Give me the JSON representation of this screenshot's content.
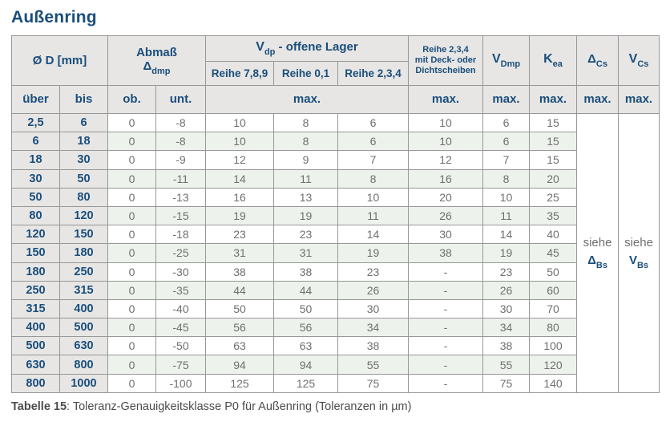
{
  "page": {
    "title": "Außenring",
    "caption_label": "Tabelle 15",
    "caption_text": ": Toleranz-Genauigkeitsklasse P0 für Außenring (Toleranzen in µm)"
  },
  "colors": {
    "accent": "#1a4e7c",
    "bodytext": "#6f6f6f",
    "headerbg": "#e7e6e4",
    "altrow": "#edf3ec",
    "border": "#979797",
    "caption": "#4c4c4c",
    "pagebg": "#ffffff"
  },
  "table": {
    "header": {
      "diameter": "Ø D  [mm]",
      "abmass_line1": "Abmaß",
      "abmass_symbol": "Δ",
      "abmass_sub": "dmp",
      "vdp_symbol": "V",
      "vdp_sub": "dp",
      "vdp_rest": "  -  offene Lager",
      "vdp_cols": [
        "Reihe 7,8,9",
        "Reihe 0,1",
        "Reihe 2,3,4"
      ],
      "sealed": [
        "Reihe 2,3,4",
        "mit Deck- oder",
        "Dichtscheiben"
      ],
      "vdmp_symbol": "V",
      "vdmp_sub": "Dmp",
      "kea_symbol": "K",
      "kea_sub": "ea",
      "dcs_symbol": "Δ",
      "dcs_sub": "Cs",
      "vcs_symbol": "V",
      "vcs_sub": "Cs",
      "ueber": "über",
      "bis": "bis",
      "ob": "ob.",
      "unt": "unt.",
      "max": "max."
    },
    "rows": [
      [
        "2,5",
        "6",
        "0",
        "-8",
        "10",
        "8",
        "6",
        "10",
        "6",
        "15"
      ],
      [
        "6",
        "18",
        "0",
        "-8",
        "10",
        "8",
        "6",
        "10",
        "6",
        "15"
      ],
      [
        "18",
        "30",
        "0",
        "-9",
        "12",
        "9",
        "7",
        "12",
        "7",
        "15"
      ],
      [
        "30",
        "50",
        "0",
        "-11",
        "14",
        "11",
        "8",
        "16",
        "8",
        "20"
      ],
      [
        "50",
        "80",
        "0",
        "-13",
        "16",
        "13",
        "10",
        "20",
        "10",
        "25"
      ],
      [
        "80",
        "120",
        "0",
        "-15",
        "19",
        "19",
        "11",
        "26",
        "11",
        "35"
      ],
      [
        "120",
        "150",
        "0",
        "-18",
        "23",
        "23",
        "14",
        "30",
        "14",
        "40"
      ],
      [
        "150",
        "180",
        "0",
        "-25",
        "31",
        "31",
        "19",
        "38",
        "19",
        "45"
      ],
      [
        "180",
        "250",
        "0",
        "-30",
        "38",
        "38",
        "23",
        "-",
        "23",
        "50"
      ],
      [
        "250",
        "315",
        "0",
        "-35",
        "44",
        "44",
        "26",
        "-",
        "26",
        "60"
      ],
      [
        "315",
        "400",
        "0",
        "-40",
        "50",
        "50",
        "30",
        "-",
        "30",
        "70"
      ],
      [
        "400",
        "500",
        "0",
        "-45",
        "56",
        "56",
        "34",
        "-",
        "34",
        "80"
      ],
      [
        "500",
        "630",
        "0",
        "-50",
        "63",
        "63",
        "38",
        "-",
        "38",
        "100"
      ],
      [
        "630",
        "800",
        "0",
        "-75",
        "94",
        "94",
        "55",
        "-",
        "55",
        "120"
      ],
      [
        "800",
        "1000",
        "0",
        "-100",
        "125",
        "125",
        "75",
        "-",
        "75",
        "140"
      ]
    ],
    "siehe_dbs": {
      "prefix": "siehe",
      "symbol": "Δ",
      "sub": "Bs"
    },
    "siehe_vbs": {
      "prefix": "siehe",
      "symbol": "V",
      "sub": "Bs"
    }
  }
}
